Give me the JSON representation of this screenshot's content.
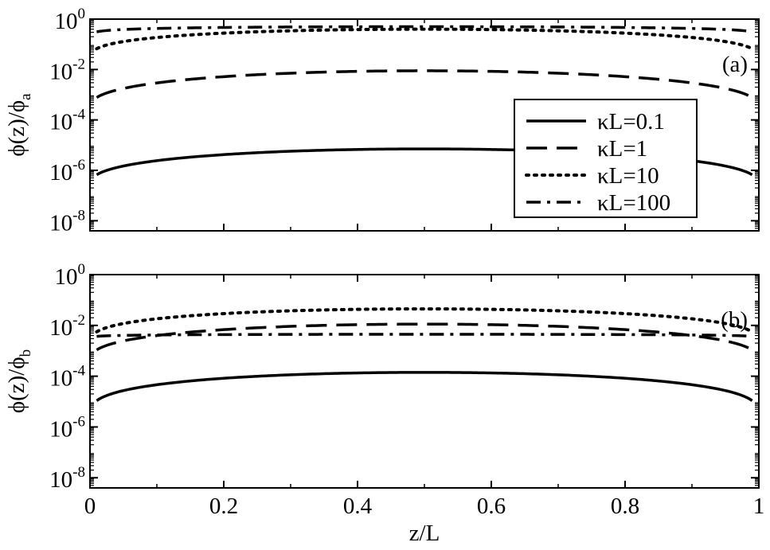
{
  "chart_data": [
    {
      "type": "line",
      "panel_label": "(a)",
      "ylabel": "ϕ(z)/ϕ",
      "ylabel_sub": "a",
      "xlabel": "",
      "xlim": [
        0,
        1
      ],
      "ylim_log10": [
        -8.4,
        0
      ],
      "y_scale": "log",
      "x_ticks": [
        0,
        0.2,
        0.4,
        0.6,
        0.8,
        1
      ],
      "x_tick_labels": [
        "0",
        "0.2",
        "0.4",
        "0.6",
        "0.8",
        "1"
      ],
      "x_tick_labels_shown": false,
      "y_ticks_log10": [
        0,
        -2,
        -4,
        -6,
        -8
      ],
      "y_tick_labels": [
        "10",
        "10",
        "10",
        "10",
        "10"
      ],
      "y_tick_exponents": [
        "0",
        "-2",
        "-4",
        "-6",
        "-8"
      ],
      "legend_position": "middle-right",
      "grid": false,
      "series": [
        {
          "name": "κL=0.1",
          "style": "solid",
          "end_log10": -6.6,
          "mid_log10": -5.15,
          "curve_power": 0.38
        },
        {
          "name": "κL=1",
          "style": "dashed",
          "end_log10": -3.55,
          "mid_log10": -2.05,
          "curve_power": 0.38
        },
        {
          "name": "κL=10",
          "style": "dotted",
          "end_log10": -1.65,
          "mid_log10": -0.4,
          "curve_power": 0.3
        },
        {
          "name": "κL=100",
          "style": "dashdot",
          "end_log10": -1.2,
          "mid_log10": -0.3,
          "curve_power": 0.08
        }
      ]
    },
    {
      "type": "line",
      "panel_label": "(b)",
      "ylabel": "ϕ(z)/ϕ",
      "ylabel_sub": "b",
      "xlabel": "z/L",
      "xlim": [
        0,
        1
      ],
      "ylim_log10": [
        -8.4,
        0
      ],
      "y_scale": "log",
      "x_ticks": [
        0,
        0.2,
        0.4,
        0.6,
        0.8,
        1
      ],
      "x_tick_labels": [
        "0",
        "0.2",
        "0.4",
        "0.6",
        "0.8",
        "1"
      ],
      "x_tick_labels_shown": true,
      "y_ticks_log10": [
        0,
        -2,
        -4,
        -6,
        -8
      ],
      "y_tick_labels": [
        "10",
        "10",
        "10",
        "10",
        "10"
      ],
      "y_tick_exponents": [
        "0",
        "-2",
        "-4",
        "-6",
        "-8"
      ],
      "grid": false,
      "series": [
        {
          "name": "κL=0.1",
          "style": "solid",
          "end_log10": -5.55,
          "mid_log10": -3.85,
          "curve_power": 0.33
        },
        {
          "name": "κL=1",
          "style": "dashed",
          "end_log10": -3.45,
          "mid_log10": -1.95,
          "curve_power": 0.35
        },
        {
          "name": "κL=10",
          "style": "dotted",
          "end_log10": -2.75,
          "mid_log10": -1.35,
          "curve_power": 0.32
        },
        {
          "name": "κL=100",
          "style": "dashdot",
          "end_log10": -2.9,
          "mid_log10": -2.35,
          "curve_power": 0.05
        }
      ]
    }
  ]
}
